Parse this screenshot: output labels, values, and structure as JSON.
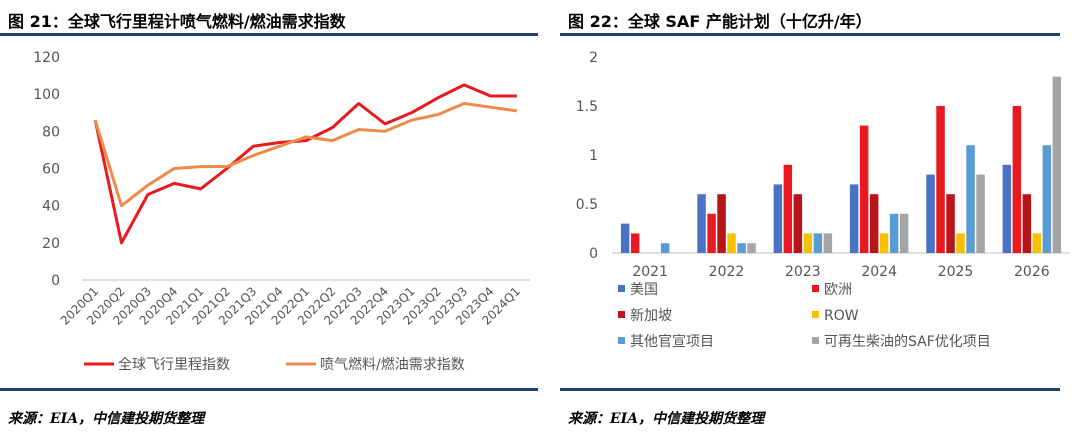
{
  "left": {
    "title": "图 21：全球飞行里程计喷气燃料/燃油需求指数",
    "source": "来源：EIA，中信建投期货整理"
  },
  "right": {
    "title": "图 22：全球 SAF 产能计划（十亿升/年）",
    "source": "来源：EIA，中信建投期货整理"
  },
  "chart_data": [
    {
      "type": "line",
      "title": "全球飞行里程计喷气燃料/燃油需求指数",
      "x": [
        "2020Q1",
        "2020Q2",
        "2020Q3",
        "2020Q4",
        "2021Q1",
        "2021Q2",
        "2021Q3",
        "2021Q4",
        "2022Q1",
        "2022Q2",
        "2022Q3",
        "2022Q4",
        "2023Q1",
        "2023Q2",
        "2023Q3",
        "2023Q4",
        "2024Q1"
      ],
      "ylim": [
        0,
        120
      ],
      "yticks": [
        0,
        20,
        40,
        60,
        80,
        100,
        120
      ],
      "series": [
        {
          "name": "全球飞行里程指数",
          "color": "#e8191f",
          "values": [
            86,
            20,
            46,
            52,
            49,
            60,
            72,
            74,
            75,
            82,
            95,
            84,
            90,
            98,
            105,
            99,
            99
          ]
        },
        {
          "name": "喷气燃料/燃油需求指数",
          "color": "#ee8a4a",
          "values": [
            86,
            40,
            51,
            60,
            61,
            61,
            67,
            72,
            77,
            75,
            81,
            80,
            86,
            89,
            95,
            93,
            91
          ]
        }
      ],
      "legend_position": "bottom"
    },
    {
      "type": "bar",
      "title": "全球 SAF 产能计划（十亿升/年）",
      "categories": [
        "2021",
        "2022",
        "2023",
        "2024",
        "2025",
        "2026"
      ],
      "ylim": [
        0,
        2
      ],
      "yticks": [
        "0",
        "0.5",
        "1",
        "1.5",
        "2"
      ],
      "series": [
        {
          "name": "美国",
          "color": "#4a72c4",
          "values": [
            0.3,
            0.6,
            0.7,
            0.7,
            0.8,
            0.9
          ]
        },
        {
          "name": "欧洲",
          "color": "#e8191f",
          "values": [
            0.2,
            0.4,
            0.9,
            1.3,
            1.5,
            1.5
          ]
        },
        {
          "name": "新加坡",
          "color": "#b8141a",
          "values": [
            0,
            0.6,
            0.6,
            0.6,
            0.6,
            0.6
          ]
        },
        {
          "name": "ROW",
          "color": "#f6c200",
          "values": [
            0,
            0.2,
            0.2,
            0.2,
            0.2,
            0.2
          ]
        },
        {
          "name": "其他官宣项目",
          "color": "#5b9bd5",
          "values": [
            0.1,
            0.1,
            0.2,
            0.4,
            1.1,
            1.1
          ]
        },
        {
          "name": "可再生柴油的SAF优化项目",
          "color": "#a5a5a5",
          "values": [
            0,
            0.1,
            0.2,
            0.4,
            0.8,
            1.8
          ]
        }
      ],
      "legend_position": "bottom"
    }
  ]
}
